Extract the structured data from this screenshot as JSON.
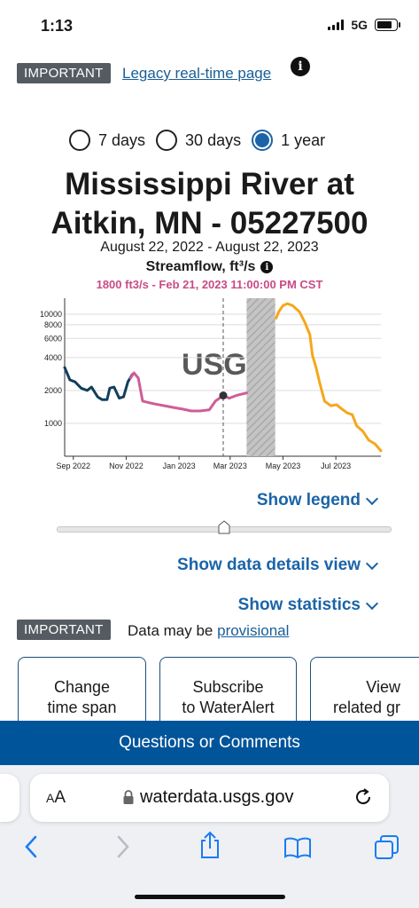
{
  "status": {
    "time": "1:13",
    "network": "5G"
  },
  "top_notice": {
    "badge": "IMPORTANT",
    "link": "Legacy real-time page "
  },
  "time_options": [
    {
      "label": "7 days",
      "selected": false
    },
    {
      "label": "30 days",
      "selected": false
    },
    {
      "label": "1 year",
      "selected": true
    }
  ],
  "site": {
    "title_line1": "Mississippi River at",
    "title_line2": "Aitkin, MN - 05227500",
    "date_range": "August 22, 2022 - August 22, 2023",
    "parameter": "Streamflow, ft³/s",
    "tooltip": "1800 ft3/s - Feb 21, 2023 11:00:00 PM CST"
  },
  "chart_data": {
    "type": "line",
    "x_ticks": [
      "Sep 2022",
      "Nov 2022",
      "Jan 2023",
      "Mar 2023",
      "May 2023",
      "Jul 2023"
    ],
    "y_ticks": [
      "10000",
      "8000",
      "6000",
      "4000",
      "2000",
      "1000"
    ],
    "y_scale": "log",
    "ylim": [
      500,
      14000
    ],
    "watermark": "USGS",
    "series": [
      {
        "color": "#123f5c",
        "points": [
          [
            "2022-08-22",
            3250
          ],
          [
            "2022-08-28",
            2500
          ],
          [
            "2022-09-03",
            2400
          ],
          [
            "2022-09-10",
            2100
          ],
          [
            "2022-09-17",
            2000
          ],
          [
            "2022-09-22",
            2150
          ],
          [
            "2022-09-29",
            1750
          ],
          [
            "2022-10-04",
            1650
          ],
          [
            "2022-10-10",
            1650
          ],
          [
            "2022-10-13",
            2100
          ],
          [
            "2022-10-18",
            2150
          ],
          [
            "2022-10-24",
            1700
          ],
          [
            "2022-10-29",
            1750
          ],
          [
            "2022-11-03",
            2400
          ],
          [
            "2022-11-08",
            2800
          ]
        ]
      },
      {
        "color": "#d05c98",
        "points": [
          [
            "2022-11-06",
            2600
          ],
          [
            "2022-11-10",
            2900
          ],
          [
            "2022-11-15",
            2600
          ],
          [
            "2022-11-20",
            1600
          ],
          [
            "2022-11-27",
            1550
          ],
          [
            "2022-12-05",
            1500
          ],
          [
            "2022-12-15",
            1450
          ],
          [
            "2022-12-25",
            1400
          ],
          [
            "2023-01-05",
            1350
          ],
          [
            "2023-01-15",
            1300
          ],
          [
            "2023-01-25",
            1300
          ],
          [
            "2023-02-05",
            1330
          ],
          [
            "2023-02-12",
            1600
          ],
          [
            "2023-02-21",
            1800
          ],
          [
            "2023-02-28",
            1700
          ],
          [
            "2023-03-08",
            1800
          ],
          [
            "2023-03-20",
            1900
          ]
        ]
      },
      {
        "color": "#f5a71b",
        "points": [
          [
            "2023-04-23",
            9200
          ],
          [
            "2023-04-26",
            10500
          ],
          [
            "2023-05-01",
            12000
          ],
          [
            "2023-05-06",
            12500
          ],
          [
            "2023-05-12",
            12000
          ],
          [
            "2023-05-20",
            10500
          ],
          [
            "2023-05-26",
            8500
          ],
          [
            "2023-06-01",
            6500
          ],
          [
            "2023-06-04",
            4200
          ],
          [
            "2023-06-08",
            3300
          ],
          [
            "2023-06-12",
            2400
          ],
          [
            "2023-06-18",
            1600
          ],
          [
            "2023-06-25",
            1450
          ],
          [
            "2023-07-02",
            1480
          ],
          [
            "2023-07-08",
            1350
          ],
          [
            "2023-07-14",
            1250
          ],
          [
            "2023-07-20",
            1200
          ],
          [
            "2023-07-25",
            950
          ],
          [
            "2023-08-01",
            850
          ],
          [
            "2023-08-08",
            700
          ],
          [
            "2023-08-15",
            650
          ],
          [
            "2023-08-22",
            560
          ]
        ]
      }
    ],
    "marker": {
      "x": "2023-02-21",
      "y": 1800
    },
    "shaded_gap": [
      "2023-03-20",
      "2023-04-22"
    ]
  },
  "toggles": {
    "legend": "Show legend",
    "details": "Show data details view",
    "statistics": "Show statistics"
  },
  "provisional": {
    "badge": "IMPORTANT",
    "text": "Data may be ",
    "link": "provisional"
  },
  "cards": [
    {
      "line1": "Change",
      "line2": "time span"
    },
    {
      "line1": "Subscribe",
      "line2": "to WaterAlert"
    },
    {
      "line1": "View",
      "line2": "related gr"
    }
  ],
  "footer": {
    "label": "Questions or Comments"
  },
  "browser": {
    "aa_small": "A",
    "aa_big": "A",
    "url": "waterdata.usgs.gov"
  }
}
